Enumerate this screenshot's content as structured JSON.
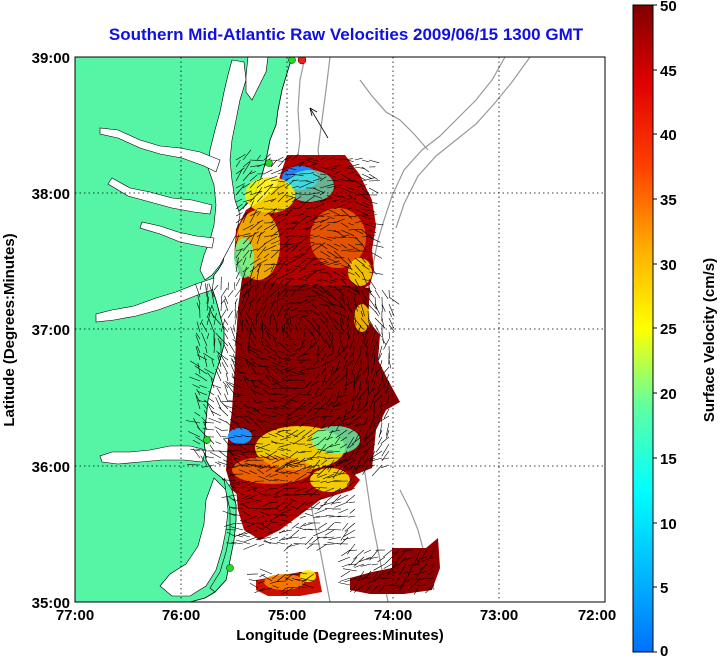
{
  "title": "Southern Mid-Atlantic Raw Velocities 2009/06/15 1300 GMT",
  "x_axis": {
    "label": "Longitude (Degrees:Minutes)",
    "ticks": [
      "77:00",
      "76:00",
      "75:00",
      "74:00",
      "73:00",
      "72:00"
    ]
  },
  "y_axis": {
    "label": "Latitude (Degrees:Minutes)",
    "ticks": [
      "39:00",
      "38:00",
      "37:00",
      "36:00",
      "35:00"
    ]
  },
  "colorbar": {
    "label": "Surface Velocity (cm/s)",
    "ticks": [
      "50",
      "45",
      "40",
      "35",
      "30",
      "25",
      "20",
      "15",
      "10",
      "5",
      "0"
    ]
  },
  "colors": {
    "land": "#55f5a5",
    "title": "#1010e0",
    "station_green": "#22dd22",
    "station_red": "#ee2020"
  }
}
